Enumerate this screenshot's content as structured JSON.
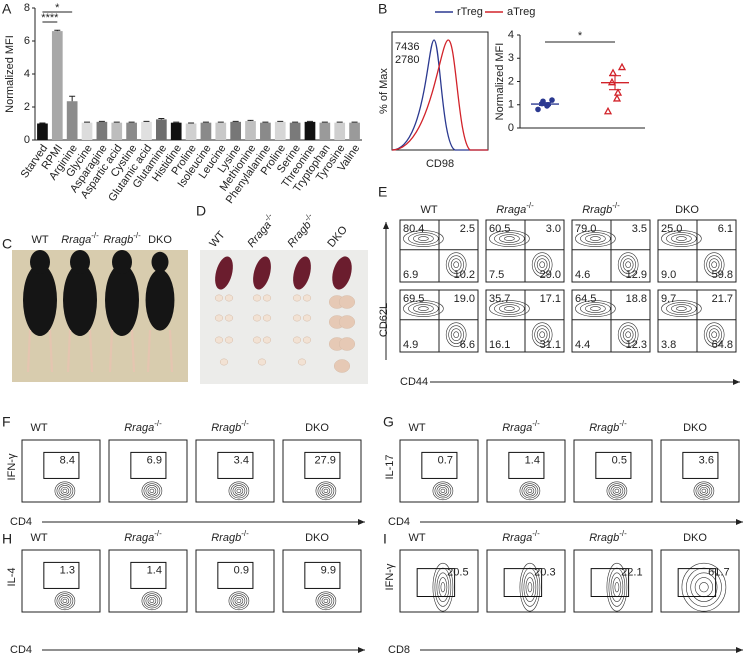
{
  "panel_labels": [
    "A",
    "B",
    "C",
    "D",
    "E",
    "F",
    "G",
    "H",
    "I"
  ],
  "chart_data": [
    {
      "type": "bar",
      "ylabel": "Normalized MFI",
      "categories": [
        "Starved",
        "RPMI",
        "Arginine",
        "Glycine",
        "Asparagine",
        "Aspartic acid",
        "Cystine",
        "Glutamic acid",
        "Glutamine",
        "Histidine",
        "Proline",
        "Isoleucine",
        "Leucine",
        "Lysine",
        "Methionine",
        "Phenylalanine",
        "Proline",
        "Serine",
        "Threonine",
        "Tryptophan",
        "Tyrosine",
        "Valine"
      ],
      "values": [
        1.0,
        6.6,
        2.35,
        1.05,
        1.1,
        1.05,
        1.05,
        1.1,
        1.25,
        1.05,
        1.0,
        1.05,
        1.05,
        1.1,
        1.15,
        1.05,
        1.1,
        1.05,
        1.1,
        1.05,
        1.05,
        1.05
      ],
      "errors": [
        0.03,
        0.05,
        0.3,
        0.03,
        0.03,
        0.03,
        0.03,
        0.03,
        0.05,
        0.03,
        0.03,
        0.03,
        0.03,
        0.03,
        0.04,
        0.03,
        0.03,
        0.03,
        0.03,
        0.03,
        0.03,
        0.03
      ],
      "colors": [
        "#111111",
        "#a8a8a8",
        "#8c8c8c",
        "#dcdcdc",
        "#7a7a7a",
        "#bdbdbd",
        "#8a8a8a",
        "#e0e0e0",
        "#6e6e6e",
        "#111111",
        "#d0d0d0",
        "#8a8a8a",
        "#c8c8c8",
        "#777777",
        "#c0c0c0",
        "#8a8a8a",
        "#d6d6d6",
        "#7a7a7a",
        "#111111",
        "#9a9a9a",
        "#cfcfcf",
        "#9a9a9a"
      ],
      "ylim": [
        0,
        8
      ],
      "yticks": [
        0,
        2,
        4,
        6,
        8
      ],
      "annotations": [
        "*",
        "****"
      ]
    },
    {
      "type": "strip",
      "ylabel": "Normalized MFI",
      "ylim": [
        0,
        4
      ],
      "yticks": [
        0,
        1,
        2,
        3,
        4
      ],
      "series": [
        {
          "name": "rTreg",
          "color": "#2b3990",
          "values": [
            0.8,
            0.95,
            1.0,
            1.05,
            1.15,
            1.2
          ],
          "mean": 1.03,
          "sem": 0.06
        },
        {
          "name": "aTreg",
          "color": "#d2232a",
          "values": [
            0.7,
            1.25,
            1.5,
            1.95,
            2.35,
            2.6
          ],
          "mean": 1.95,
          "sem": 0.3
        }
      ],
      "annotations": [
        "*"
      ]
    }
  ],
  "histogram": {
    "mfi": [
      "7436",
      "2780"
    ],
    "ylabel": "% of Max",
    "xlabel": "CD98"
  },
  "genotypes": [
    {
      "name": "WT"
    },
    {
      "name": "Rraga",
      "sup": "-/-"
    },
    {
      "name": "Rragb",
      "sup": "-/-"
    },
    {
      "name": "DKO"
    }
  ],
  "flow_e": {
    "ylabel": "CD62L",
    "xlabel": "CD44",
    "rows": [
      [
        [
          "80.4",
          "2.5",
          "6.9",
          "10.2"
        ],
        [
          "60.5",
          "3.0",
          "7.5",
          "29.0"
        ],
        [
          "79.0",
          "3.5",
          "4.6",
          "12.9"
        ],
        [
          "25.0",
          "6.1",
          "9.0",
          "59.8"
        ]
      ],
      [
        [
          "69.5",
          "19.0",
          "4.9",
          "6.6"
        ],
        [
          "35.7",
          "17.1",
          "16.1",
          "31.1"
        ],
        [
          "64.5",
          "18.8",
          "4.4",
          "12.3"
        ],
        [
          "9.7",
          "21.7",
          "3.8",
          "64.8"
        ]
      ]
    ]
  },
  "flow_panels": [
    {
      "ylabel": "IFN-γ",
      "xlabel": "CD4",
      "gates": [
        "8.4",
        "6.9",
        "3.4",
        "27.9"
      ]
    },
    {
      "ylabel": "IL-17",
      "xlabel": "CD4",
      "gates": [
        "0.7",
        "1.4",
        "0.5",
        "3.6"
      ]
    },
    {
      "ylabel": "IL-4",
      "xlabel": "CD4",
      "gates": [
        "1.3",
        "1.4",
        "0.9",
        "9.9"
      ]
    },
    {
      "ylabel": "IFN-γ",
      "xlabel": "CD8",
      "gates": [
        "20.5",
        "20.3",
        "22.1",
        "61.7"
      ]
    }
  ]
}
